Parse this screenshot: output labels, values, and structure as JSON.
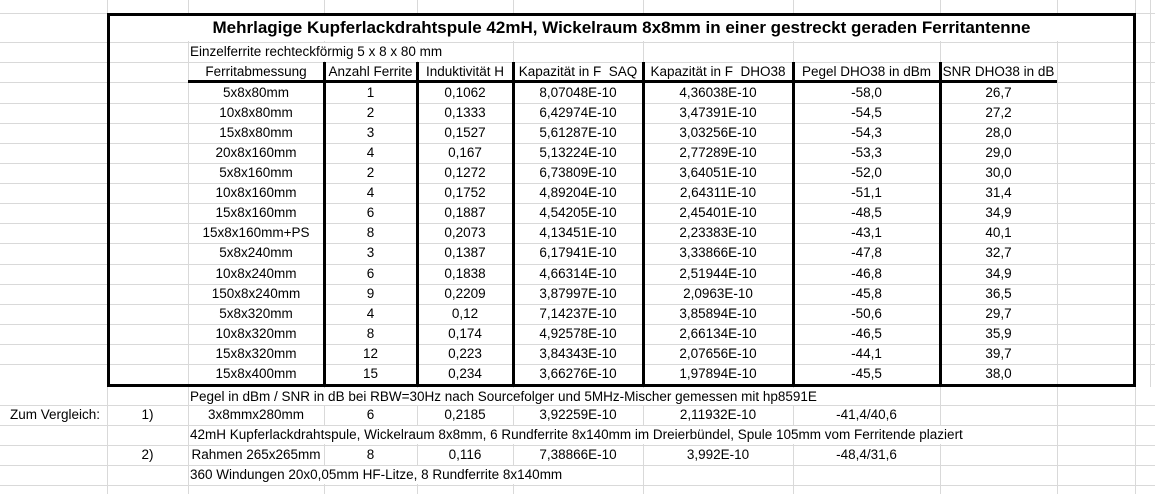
{
  "sheet": {
    "title": "Mehrlagige Kupferlackdrahtspule 42mH, Wickelraum 8x8mm in einer gestreckt geraden Ferritantenne",
    "subtitle": "Einzelferrite rechteckförmig 5 x 8 x 80 mm",
    "columns": [
      "Ferritabmessung",
      "Anzahl Ferrite",
      "Induktivität H",
      "Kapazität in F  SAQ",
      "Kapazität in F  DHO38",
      "Pegel DHO38 in dBm",
      "SNR DHO38 in dB"
    ],
    "rows": [
      [
        "5x8x80mm",
        "1",
        "0,1062",
        "8,07048E-10",
        "4,36038E-10",
        "-58,0",
        "26,7"
      ],
      [
        "10x8x80mm",
        "2",
        "0,1333",
        "6,42974E-10",
        "3,47391E-10",
        "-54,5",
        "27,2"
      ],
      [
        "15x8x80mm",
        "3",
        "0,1527",
        "5,61287E-10",
        "3,03256E-10",
        "-54,3",
        "28,0"
      ],
      [
        "20x8x160mm",
        "4",
        "0,167",
        "5,13224E-10",
        "2,77289E-10",
        "-53,3",
        "29,0"
      ],
      [
        "5x8x160mm",
        "2",
        "0,1272",
        "6,73809E-10",
        "3,64051E-10",
        "-52,0",
        "30,0"
      ],
      [
        "10x8x160mm",
        "4",
        "0,1752",
        "4,89204E-10",
        "2,64311E-10",
        "-51,1",
        "31,4"
      ],
      [
        "15x8x160mm",
        "6",
        "0,1887",
        "4,54205E-10",
        "2,45401E-10",
        "-48,5",
        "34,9"
      ],
      [
        "15x8x160mm+PS",
        "8",
        "0,2073",
        "4,13451E-10",
        "2,23383E-10",
        "-43,1",
        "40,1"
      ],
      [
        "5x8x240mm",
        "3",
        "0,1387",
        "6,17941E-10",
        "3,33866E-10",
        "-47,8",
        "32,7"
      ],
      [
        "10x8x240mm",
        "6",
        "0,1838",
        "4,66314E-10",
        "2,51944E-10",
        "-46,8",
        "34,9"
      ],
      [
        "150x8x240mm",
        "9",
        "0,2209",
        "3,87997E-10",
        "2,0963E-10",
        "-45,8",
        "36,5"
      ],
      [
        "5x8x320mm",
        "4",
        "0,12",
        "7,14237E-10",
        "3,85894E-10",
        "-50,6",
        "29,7"
      ],
      [
        "10x8x320mm",
        "8",
        "0,174",
        "4,92578E-10",
        "2,66134E-10",
        "-46,5",
        "35,9"
      ],
      [
        "15x8x320mm",
        "12",
        "0,223",
        "3,84343E-10",
        "2,07656E-10",
        "-44,1",
        "39,7"
      ],
      [
        "15x8x400mm",
        "15",
        "0,234",
        "3,66276E-10",
        "1,97894E-10",
        "-45,5",
        "38,0"
      ]
    ],
    "measurement_note": "Pegel in dBm / SNR in dB bei RBW=30Hz nach Sourcefolger und 5MHz-Mischer gemessen mit hp8591E",
    "comparison_label": "Zum Vergleich:",
    "comparisons": [
      {
        "index": "1)",
        "name": "3x8mmx280mm",
        "count": "6",
        "inductance": "0,2185",
        "cap_saq": "3,92259E-10",
        "cap_dho38": "2,11932E-10",
        "level_snr": "-41,4/40,6",
        "note": "42mH Kupferlackdrahtspule, Wickelraum 8x8mm, 6 Rundferrite 8x140mm im Dreierbündel, Spule 105mm vom Ferritende plaziert"
      },
      {
        "index": "2)",
        "name": "Rahmen 265x265mm",
        "count": "8",
        "inductance": "0,116",
        "cap_saq": "7,38866E-10",
        "cap_dho38": "3,992E-10",
        "level_snr": "-48,4/31,6",
        "note": "360 Windungen 20x0,05mm HF-Litze, 8 Rundferrite 8x140mm"
      }
    ],
    "colors": {
      "gridline": "#d9d9d9",
      "border": "#000000",
      "background": "#ffffff",
      "text": "#000000"
    }
  }
}
